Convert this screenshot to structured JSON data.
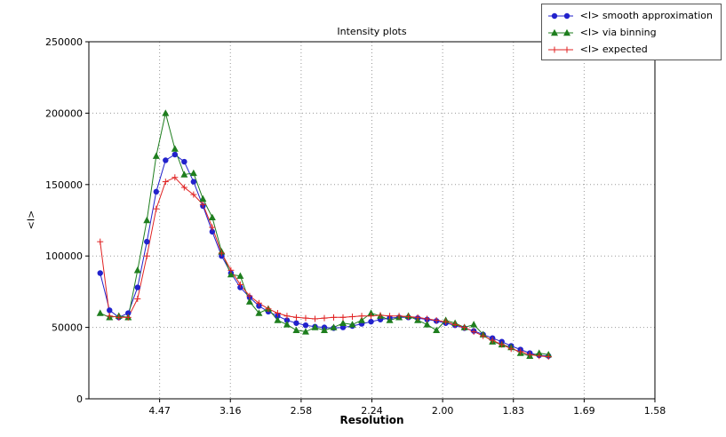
{
  "figure": {
    "title": "Intensity plots",
    "xlabel": "Resolution",
    "ylabel": "<I>"
  },
  "legend": {
    "items": [
      {
        "label": "<I> smooth approximation",
        "marker": "circle",
        "color": "#2222cc"
      },
      {
        "label": "<I> via binning",
        "marker": "triangle",
        "color": "#1e7e1e"
      },
      {
        "label": "<I> expected",
        "marker": "plus",
        "color": "#e02222"
      }
    ]
  },
  "chart_data": {
    "type": "line",
    "title": "Intensity plots",
    "xlabel": "Resolution",
    "ylabel": "<I>",
    "grid": true,
    "legend_position": "top-right",
    "xlim": [
      0,
      0.4
    ],
    "ylim": [
      0,
      250000
    ],
    "x_ticks": [
      {
        "value": 0.05,
        "label": "4.47"
      },
      {
        "value": 0.1,
        "label": "3.16"
      },
      {
        "value": 0.15,
        "label": "2.58"
      },
      {
        "value": 0.2,
        "label": "2.24"
      },
      {
        "value": 0.25,
        "label": "2.00"
      },
      {
        "value": 0.3,
        "label": "1.83"
      },
      {
        "value": 0.35,
        "label": "1.69"
      },
      {
        "value": 0.4,
        "label": "1.58"
      }
    ],
    "y_ticks": [
      0,
      50000,
      100000,
      150000,
      200000,
      250000
    ],
    "x": [
      0.008,
      0.0146,
      0.0212,
      0.0278,
      0.0344,
      0.041,
      0.0476,
      0.0542,
      0.0608,
      0.0674,
      0.074,
      0.0806,
      0.0872,
      0.0938,
      0.1004,
      0.107,
      0.1136,
      0.1202,
      0.1268,
      0.1334,
      0.14,
      0.1466,
      0.1532,
      0.1598,
      0.1664,
      0.173,
      0.1796,
      0.1862,
      0.1928,
      0.1994,
      0.206,
      0.2126,
      0.2192,
      0.2258,
      0.2324,
      0.239,
      0.2456,
      0.2522,
      0.2588,
      0.2654,
      0.272,
      0.2786,
      0.2852,
      0.2918,
      0.2984,
      0.305,
      0.3116,
      0.3182,
      0.3248
    ],
    "series": [
      {
        "name": "<I> smooth approximation",
        "color": "#2222cc",
        "marker": "circle",
        "values": [
          88000,
          62000,
          57000,
          60000,
          78000,
          110000,
          145000,
          167000,
          171000,
          166000,
          152000,
          135000,
          117000,
          100000,
          88000,
          78000,
          71000,
          65000,
          61000,
          58000,
          55000,
          53000,
          51500,
          50500,
          50000,
          49500,
          50000,
          51000,
          52500,
          54000,
          55500,
          56500,
          57000,
          57000,
          56500,
          55500,
          54500,
          53000,
          51500,
          49500,
          47500,
          45000,
          42500,
          40000,
          37000,
          34500,
          32000,
          30500,
          30000
        ]
      },
      {
        "name": "<I> via binning",
        "color": "#1e7e1e",
        "marker": "triangle",
        "values": [
          60000,
          57000,
          58000,
          57000,
          90000,
          125000,
          170000,
          200000,
          175000,
          157000,
          158000,
          140000,
          127000,
          103000,
          87000,
          86000,
          68000,
          60000,
          63000,
          55000,
          52000,
          48000,
          47000,
          50000,
          48000,
          50000,
          53000,
          52000,
          55000,
          60000,
          58000,
          55000,
          57000,
          58000,
          55000,
          52000,
          48000,
          55000,
          53000,
          50000,
          52000,
          45000,
          40000,
          38000,
          36000,
          32000,
          30000,
          32000,
          31000
        ]
      },
      {
        "name": "<I> expected",
        "color": "#e02222",
        "marker": "plus",
        "values": [
          110000,
          58000,
          57000,
          57000,
          70000,
          100000,
          133000,
          152000,
          155000,
          148000,
          143000,
          136000,
          120000,
          102000,
          90000,
          80000,
          72000,
          67000,
          63000,
          60000,
          58000,
          57000,
          56500,
          56000,
          56500,
          57000,
          57000,
          57500,
          58000,
          58000,
          58500,
          58000,
          58000,
          57500,
          57000,
          56000,
          55000,
          54000,
          52000,
          50000,
          47000,
          44000,
          41000,
          38000,
          35000,
          33000,
          31000,
          30000,
          29500
        ]
      }
    ]
  }
}
